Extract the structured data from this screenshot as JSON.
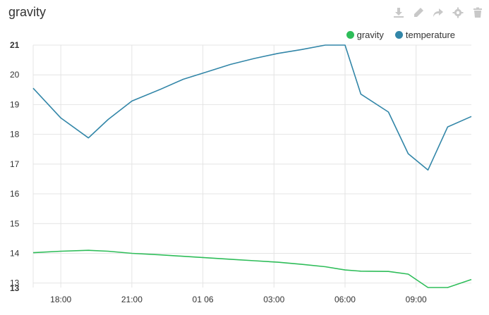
{
  "panel": {
    "title": "gravity"
  },
  "toolbar": {
    "icons": [
      "download-icon",
      "edit-icon",
      "share-icon",
      "settings-icon",
      "delete-icon"
    ]
  },
  "colors": {
    "gravity": "#2ebd59",
    "temperature": "#3286a8",
    "grid": "#e4e4e4",
    "icon": "#c8c8c8"
  },
  "chart_data": {
    "type": "line",
    "title": "",
    "xlabel": "",
    "ylabel": "",
    "x_ticks": [
      "18:00",
      "21:00",
      "01 06",
      "03:00",
      "06:00",
      "09:00"
    ],
    "y_ticks": [
      "21",
      "20",
      "19",
      "18",
      "17",
      "16",
      "15",
      "14",
      "13",
      "13"
    ],
    "ylim": [
      12.85,
      21
    ],
    "grid": true,
    "legend_position": "top-right",
    "series": [
      {
        "name": "gravity",
        "x": [
          "16:50",
          "18:00",
          "19:10",
          "20:00",
          "21:00",
          "22:10",
          "23:10",
          "00:10",
          "01:10",
          "02:10",
          "03:10",
          "04:10",
          "05:10",
          "06:00",
          "06:40",
          "07:50",
          "08:40",
          "09:30",
          "10:20",
          "11:20"
        ],
        "y": [
          14.02,
          14.07,
          14.1,
          14.07,
          14.0,
          13.95,
          13.9,
          13.85,
          13.8,
          13.75,
          13.7,
          13.63,
          13.55,
          13.44,
          13.4,
          13.39,
          13.3,
          12.85,
          12.85,
          13.12
        ]
      },
      {
        "name": "temperature",
        "x": [
          "16:50",
          "18:00",
          "19:10",
          "20:00",
          "21:00",
          "22:10",
          "23:10",
          "00:10",
          "01:10",
          "02:10",
          "03:10",
          "04:10",
          "05:10",
          "06:00",
          "06:40",
          "07:50",
          "08:40",
          "09:30",
          "10:20",
          "11:20"
        ],
        "y": [
          19.55,
          18.55,
          17.88,
          18.5,
          19.12,
          19.5,
          19.85,
          20.1,
          20.35,
          20.55,
          20.72,
          20.85,
          21.0,
          21.0,
          19.35,
          18.75,
          17.35,
          16.8,
          18.25,
          18.6
        ]
      }
    ]
  }
}
